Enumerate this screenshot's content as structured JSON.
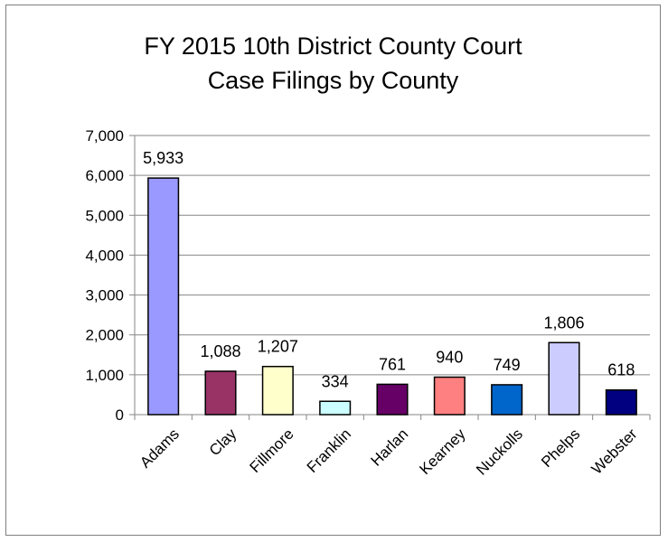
{
  "chart_data": {
    "type": "bar",
    "title_line1": "FY 2015 10th District County Court",
    "title_line2": "Case Filings by County",
    "xlabel": "",
    "ylabel": "",
    "ylim": [
      0,
      7000
    ],
    "ytick_values": [
      0,
      1000,
      2000,
      3000,
      4000,
      5000,
      6000,
      7000
    ],
    "ytick_labels": [
      "0",
      "1,000",
      "2,000",
      "3,000",
      "4,000",
      "5,000",
      "6,000",
      "7,000"
    ],
    "categories": [
      "Adams",
      "Clay",
      "Fillmore",
      "Franklin",
      "Harlan",
      "Kearney",
      "Nuckolls",
      "Phelps",
      "Webster"
    ],
    "values": [
      5933,
      1088,
      1207,
      334,
      761,
      940,
      749,
      1806,
      618
    ],
    "data_labels": [
      "5,933",
      "1,088",
      "1,207",
      "334",
      "761",
      "940",
      "749",
      "1,806",
      "618"
    ],
    "bar_colors": [
      "#9999ff",
      "#993366",
      "#ffffcc",
      "#ccffff",
      "#660066",
      "#ff8080",
      "#0066cc",
      "#ccccff",
      "#000080"
    ],
    "grid": true,
    "legend": "none"
  }
}
